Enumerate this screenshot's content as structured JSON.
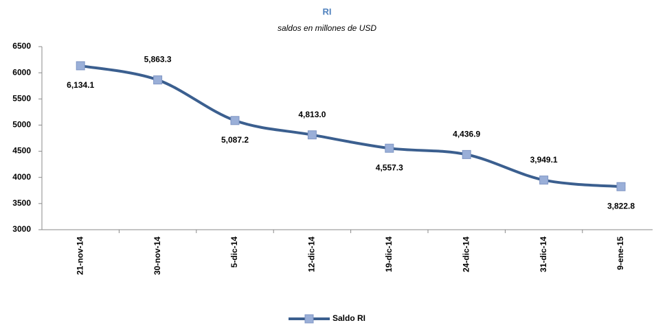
{
  "chart_data": {
    "type": "line",
    "title": "RI",
    "subtitle": "saldos en millones de USD",
    "categories": [
      "21-nov-14",
      "30-nov-14",
      "5-dic-14",
      "12-dic-14",
      "19-dic-14",
      "24-dic-14",
      "31-dic-14",
      "9-ene-15"
    ],
    "series": [
      {
        "name": "Saldo RI",
        "color": "#3b5f8f",
        "marker_color": "#9aafd8",
        "values": [
          6134.1,
          5863.3,
          5087.2,
          4813.0,
          4557.3,
          4436.9,
          3949.1,
          3822.8
        ],
        "value_labels": [
          "6,134.1",
          "5,863.3",
          "5,087.2",
          "4,813.0",
          "4,557.3",
          "4,436.9",
          "3,949.1",
          "3,822.8"
        ]
      }
    ],
    "ylim": [
      3000,
      6500
    ],
    "yticks": [
      3000,
      3500,
      4000,
      4500,
      5000,
      5500,
      6000,
      6500
    ],
    "grid": false,
    "legend": "bottom"
  }
}
